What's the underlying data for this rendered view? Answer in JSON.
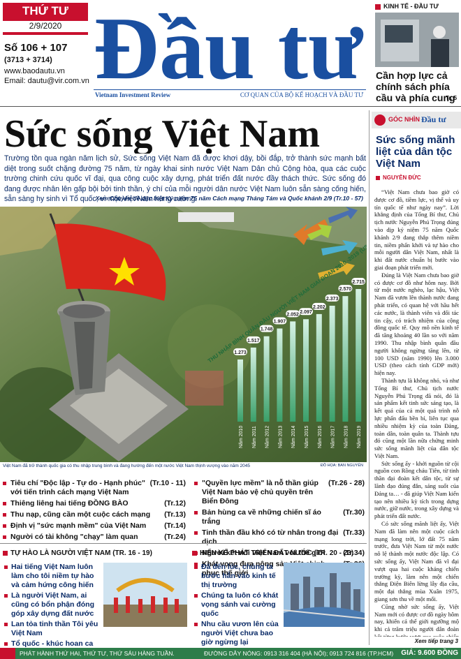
{
  "header": {
    "weekday": "THỨ TƯ",
    "date": "2/9/2020",
    "issue": "Số 106 + 107",
    "issue_sub": "(3713 + 3714)",
    "website": "www.baodautu.vn",
    "email": "Email: dautu@vir.com.vn",
    "masthead": "Đầu tư",
    "english_name": "Vietnam Investment Review",
    "agency": "CƠ QUAN CỦA BỘ KẾ HOẠCH VÀ ĐẦU TƯ"
  },
  "teaser": {
    "section": "KINH TẾ - ĐẦU TƯ",
    "headline": "Cần hợp lực cả chính sách phía cầu và phía cung",
    "page": "Tr. 5"
  },
  "lead": {
    "headline": "Sức sống Việt Nam",
    "body": "Trường tồn qua ngàn năm lịch sử, Sức sống Việt Nam đã được khơi dậy, bồi đắp, trở thành sức mạnh bất diệt trong suốt chặng đường 75 năm, từ ngày khai sinh nước Việt Nam Dân chủ Cộng hòa, qua các cuộc trường chinh cứu quốc vĩ đại, qua công cuộc xây dựng, phát triển đất nước đầy thách thức. Sức sống đó đang được nhân lên gấp bội bởi tinh thần, ý chí của mỗi người dân nước Việt Nam luôn sẵn sàng cống hiến, sẵn sàng hy sinh vì Tổ quốc, vì một Việt Nam hùng cường.",
    "reference": "Xem Chuyên đề đặc biệt Kỷ niệm 75 năm Cách mạng Tháng Tám và Quốc khánh 2/9 (Tr.10 - 57)"
  },
  "infographic": {
    "title": "THU NHẬP BÌNH QUÂN ĐẦU NGƯỜI VIỆT NAM GIAI ĐOẠN 2010 -2019 (USD)",
    "years": [
      "Năm 2010",
      "Năm 2011",
      "Năm 2012",
      "Năm 2013",
      "Năm 2014",
      "Năm 2015",
      "Năm 2016",
      "Năm 2017",
      "Năm 2018",
      "Năm 2019"
    ],
    "values": [
      1273,
      1517,
      1748,
      1907,
      2052,
      2097,
      2202,
      2373,
      2570,
      2715
    ],
    "value_labels": [
      "1.273",
      "1.517",
      "1.748",
      "1.907",
      "2.052",
      "2.097",
      "2.202",
      "2.373",
      "2.570",
      "2.715"
    ],
    "caption": "Việt Nam đã trở thành quốc gia có thu nhập trung bình và đang hướng đến một nước Việt Nam thịnh vượng vào năm 2045",
    "credit": "ĐỒ HỌA: BAN NGUYÊN"
  },
  "index": {
    "left": [
      {
        "text": "Tiêu chí \"Độc lập - Tự do - Hạnh phúc\" với tiến trình cách mạng Việt Nam",
        "page": "(Tr.10 - 11)"
      },
      {
        "text": "Thiêng liêng hai tiếng ĐỒNG BÀO",
        "page": "(Tr.12)"
      },
      {
        "text": "Thu nạp, cũng cần một cuộc cách mạng",
        "page": "(Tr.13)"
      },
      {
        "text": "Định vị \"sức mạnh mềm\" của Việt Nam",
        "page": "(Tr.14)"
      },
      {
        "text": "Người có tài không \"chạy\" làm quan",
        "page": "(Tr.24)"
      }
    ],
    "right": [
      {
        "text": "\"Quyền lực mềm\" là nỗ thần giúp Việt Nam bảo vệ chủ quyền trên Biển Đông",
        "page": "(Tr.26 - 28)"
      },
      {
        "text": "Bản hùng ca về những chiến sĩ áo trắng",
        "page": "(Tr.30)"
      },
      {
        "text": "Tinh thần đầu khó có từ nhân trong đại dịch",
        "page": "(Tr.33)"
      },
      {
        "text": "Người kết nối Việt Nam với thế giới",
        "page": "(Tr.34)"
      },
      {
        "text": "Khát vọng đưa nông sản Việt chinh phục thế giới",
        "page": "(Tr.36)"
      }
    ]
  },
  "sections": [
    {
      "heading": "TỰ HÀO LÀ NGƯỜI VIỆT NAM (TR. 16 - 19)",
      "items": [
        "Hai tiếng Việt Nam luôn làm cho tôi niềm tự hào và cảm hứng công hiến",
        "Là người Việt Nam, ai cũng có bổn phận đóng góp xây dựng đất nước",
        "Lan tỏa tinh thần Tôi yêu Việt Nam",
        "Tổ quốc - khúc hoan ca"
      ]
    },
    {
      "heading": "HIẾN KẾ PHÁT TRIỂN ĐẤT NƯỚC (TR. 20 - 23)",
      "items": [
        "Đã đến lúc, chúng ta bước hẳn vào kinh tế thị trường",
        "Chúng ta luôn có khát vọng sánh vai cường quốc",
        "Nhu cầu vươn lên của người Việt chưa bao giờ ngừng lại"
      ]
    }
  ],
  "column": {
    "label": "GÓC NHÌN",
    "label_brand": "Đầu tư",
    "title": "Sức sống mãnh liệt của dân tộc Việt Nam",
    "author": "NGUYỄN ĐỨC",
    "paragraphs": [
      "“Việt Nam chưa bao giờ có được cơ đồ, tiềm lực, vị thế và uy tín quốc tế như ngày nay”. Lời khẳng định của Tổng Bí thư, Chủ tịch nước Nguyễn Phú Trọng đúng vào dịp kỷ niệm 75 năm Quốc khánh 2/9 đang thắp thêm niềm tin, niềm phấn khởi và tự hào cho mỗi người dân Việt Nam, nhất là khi đất nước chuẩn bị bước vào giai đoạn phát triển mới.",
      "Đúng là Việt Nam chưa bao giờ có được cơ đồ như hôm nay. Bởi từ một nước nghèo, lạc hậu, Việt Nam đã vươn lên thành nước đang phát triển, có quan hệ với hầu hết các nước, là thành viên và đối tác tin cậy, có trách nhiệm của cộng đồng quốc tế. Quy mô nền kinh tế đã tăng khoảng 40 lần so với năm 1990. Thu nhập bình quân đầu người không ngừng tăng lên, từ 100 USD (năm 1990) lên 3.000 USD (theo cách tính GDP mới) hiện nay.",
      "Thành tựu là không nhỏ, và như Tổng Bí thư, Chủ tịch nước Nguyễn Phú Trọng đã nói, đó là sản phẩm kết tinh sức sáng tạo, là kết quả của cả một quá trình nỗ lực phấn đấu bền bỉ, liên tục qua nhiều nhiệm kỳ của toàn Đảng, toàn dân, toàn quân ta. Thành tựu đó cũng một lần nữa chứng minh sức sống mãnh liệt của dân tộc Việt Nam.",
      "Sức sống ấy - khởi nguồn từ cội nguồn con Rồng cháu Tiên, từ tinh thần đại đoàn kết dân tộc, từ sự lãnh đạo đúng đắn, sáng suốt của Đảng ta… - đã giúp Việt Nam kiến tạo nên nhiều kỳ tích trong dựng nước, giữ nước, trong xây dựng và phát triển đất nước.",
      "Có sức sống mãnh liệt ấy, Việt Nam đã làm nên một cuộc cách mạng long trời, lở đất 75 năm trước, đưa Việt Nam từ một nước nô lệ thành một nước độc lập. Có sức sống ấy, Việt Nam đã vĩ đại vượt qua hai cuộc kháng chiến trường kỳ, làm nên một chiến thắng Điện Biên lừng lẫy địa cầu, một đại thắng mùa Xuân 1975, giang sơn thu về một mối.",
      "Cũng nhờ sức sống ấy, Việt Nam mới có được cơ đồ ngày hôm nay, khiến cả thế giới ngưỡng mộ khi cả trăm triệu người dân đoàn kết từng bước vượt qua cuộc chiến với Covid-19, mà ngay cả những nước có nền y tế hiện đại bậc nhất, có tiềm lực tài chính vững mạnh đang phải vật lộn trong giai đoạn khó."
    ],
    "continued": "Xem tiếp trang 3"
  },
  "footer": {
    "schedule": "PHÁT HÀNH THỨ HAI, THỨ TƯ, THỨ SÁU HÀNG TUẦN.",
    "hotline": "ĐƯỜNG DÂY NÓNG: 0913 316 404 (HÀ NỘI); 0913 724 816 (TP.HCM)",
    "price": "GIÁ: 9.600 ĐỒNG"
  }
}
